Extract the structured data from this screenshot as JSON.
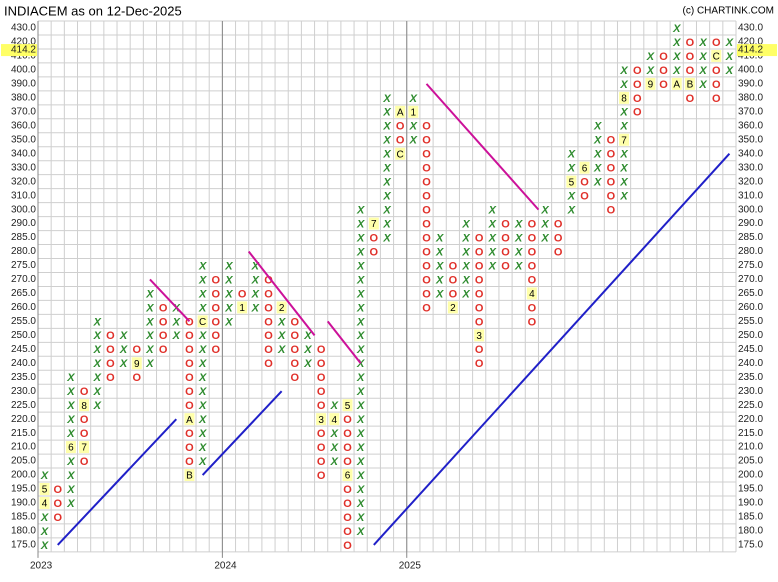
{
  "chart_data": {
    "type": "pnf",
    "title": "INDIACEM as on 12-Dec-2025",
    "source": "(c) CHARTINK.COM",
    "x_color": "#2e8b2e",
    "o_color": "#e0302a",
    "grid": true,
    "last_price": {
      "value": 414.2,
      "label": "414.2"
    },
    "yticks": [
      {
        "value": 430,
        "label": "430.0"
      },
      {
        "value": 420,
        "label": "420.0"
      },
      {
        "value": 410,
        "label": "410.0"
      },
      {
        "value": 400,
        "label": "400.0"
      },
      {
        "value": 390,
        "label": "390.0"
      },
      {
        "value": 380,
        "label": "380.0"
      },
      {
        "value": 370,
        "label": "370.0"
      },
      {
        "value": 360,
        "label": "360.0"
      },
      {
        "value": 350,
        "label": "350.0"
      },
      {
        "value": 340,
        "label": "340.0"
      },
      {
        "value": 330,
        "label": "330.0"
      },
      {
        "value": 320,
        "label": "320.0"
      },
      {
        "value": 310,
        "label": "310.0"
      },
      {
        "value": 300,
        "label": "300.0"
      },
      {
        "value": 290,
        "label": "290.0"
      },
      {
        "value": 285,
        "label": "285.0"
      },
      {
        "value": 280,
        "label": "280.0"
      },
      {
        "value": 275,
        "label": "275.0"
      },
      {
        "value": 270,
        "label": "270.0"
      },
      {
        "value": 265,
        "label": "265.0"
      },
      {
        "value": 260,
        "label": "260.0"
      },
      {
        "value": 255,
        "label": "255.0"
      },
      {
        "value": 250,
        "label": "250.0"
      },
      {
        "value": 245,
        "label": "245.0"
      },
      {
        "value": 240,
        "label": "240.0"
      },
      {
        "value": 235,
        "label": "235.0"
      },
      {
        "value": 230,
        "label": "230.0"
      },
      {
        "value": 225,
        "label": "225.0"
      },
      {
        "value": 220,
        "label": "220.0"
      },
      {
        "value": 215,
        "label": "215.0"
      },
      {
        "value": 210,
        "label": "210.0"
      },
      {
        "value": 205,
        "label": "205.0"
      },
      {
        "value": 200,
        "label": "200.0"
      },
      {
        "value": 195,
        "label": "195.0"
      },
      {
        "value": 190,
        "label": "190.0"
      },
      {
        "value": 185,
        "label": "185.0"
      },
      {
        "value": 180,
        "label": "180.0"
      },
      {
        "value": 175,
        "label": "175.0"
      }
    ],
    "xlabels": [
      {
        "col": 0,
        "label": "2023"
      },
      {
        "col": 14,
        "label": "2024"
      },
      {
        "col": 28,
        "label": "2025"
      }
    ],
    "columns": [
      {
        "type": "X",
        "low": 175,
        "high": 200,
        "markers": [
          {
            "value": 195,
            "label": "5"
          },
          {
            "value": 190,
            "label": "4"
          }
        ]
      },
      {
        "type": "O",
        "low": 185,
        "high": 195,
        "markers": []
      },
      {
        "type": "X",
        "low": 190,
        "high": 235,
        "markers": [
          {
            "value": 210,
            "label": "6"
          }
        ]
      },
      {
        "type": "O",
        "low": 205,
        "high": 230,
        "markers": [
          {
            "value": 210,
            "label": "7"
          },
          {
            "value": 225,
            "label": "8"
          }
        ]
      },
      {
        "type": "X",
        "low": 225,
        "high": 255,
        "markers": []
      },
      {
        "type": "O",
        "low": 235,
        "high": 250,
        "markers": []
      },
      {
        "type": "X",
        "low": 240,
        "high": 250,
        "markers": []
      },
      {
        "type": "O",
        "low": 235,
        "high": 245,
        "markers": [
          {
            "value": 240,
            "label": "9"
          }
        ]
      },
      {
        "type": "X",
        "low": 240,
        "high": 265,
        "markers": []
      },
      {
        "type": "O",
        "low": 245,
        "high": 260,
        "markers": []
      },
      {
        "type": "X",
        "low": 250,
        "high": 260,
        "markers": []
      },
      {
        "type": "O",
        "low": 200,
        "high": 255,
        "markers": [
          {
            "value": 220,
            "label": "A"
          },
          {
            "value": 200,
            "label": "B"
          }
        ]
      },
      {
        "type": "X",
        "low": 205,
        "high": 275,
        "markers": [
          {
            "value": 255,
            "label": "C"
          }
        ]
      },
      {
        "type": "O",
        "low": 245,
        "high": 270,
        "markers": []
      },
      {
        "type": "X",
        "low": 255,
        "high": 275,
        "markers": []
      },
      {
        "type": "O",
        "low": 260,
        "high": 265,
        "markers": [
          {
            "value": 260,
            "label": "1"
          }
        ]
      },
      {
        "type": "X",
        "low": 260,
        "high": 275,
        "markers": []
      },
      {
        "type": "O",
        "low": 240,
        "high": 270,
        "markers": []
      },
      {
        "type": "X",
        "low": 245,
        "high": 260,
        "markers": [
          {
            "value": 260,
            "label": "2"
          }
        ]
      },
      {
        "type": "O",
        "low": 235,
        "high": 255,
        "markers": []
      },
      {
        "type": "X",
        "low": 240,
        "high": 250,
        "markers": []
      },
      {
        "type": "O",
        "low": 200,
        "high": 245,
        "markers": [
          {
            "value": 220,
            "label": "3"
          }
        ]
      },
      {
        "type": "X",
        "low": 205,
        "high": 225,
        "markers": [
          {
            "value": 220,
            "label": "4"
          }
        ]
      },
      {
        "type": "O",
        "low": 175,
        "high": 225,
        "markers": [
          {
            "value": 225,
            "label": "5"
          },
          {
            "value": 200,
            "label": "6"
          }
        ]
      },
      {
        "type": "X",
        "low": 180,
        "high": 300,
        "markers": []
      },
      {
        "type": "O",
        "low": 280,
        "high": 290,
        "markers": [
          {
            "value": 290,
            "label": "7"
          }
        ]
      },
      {
        "type": "X",
        "low": 285,
        "high": 380,
        "markers": []
      },
      {
        "type": "O",
        "low": 340,
        "high": 370,
        "markers": [
          {
            "value": 370,
            "label": "A"
          },
          {
            "value": 340,
            "label": "C"
          }
        ]
      },
      {
        "type": "X",
        "low": 350,
        "high": 380,
        "markers": [
          {
            "value": 370,
            "label": "1"
          }
        ]
      },
      {
        "type": "O",
        "low": 260,
        "high": 360,
        "markers": []
      },
      {
        "type": "X",
        "low": 265,
        "high": 285,
        "markers": []
      },
      {
        "type": "O",
        "low": 260,
        "high": 275,
        "markers": [
          {
            "value": 260,
            "label": "2"
          }
        ]
      },
      {
        "type": "X",
        "low": 265,
        "high": 295,
        "markers": []
      },
      {
        "type": "O",
        "low": 240,
        "high": 285,
        "markers": [
          {
            "value": 250,
            "label": "3"
          }
        ]
      },
      {
        "type": "X",
        "low": 275,
        "high": 300,
        "markers": []
      },
      {
        "type": "O",
        "low": 275,
        "high": 290,
        "markers": []
      },
      {
        "type": "X",
        "low": 275,
        "high": 290,
        "markers": []
      },
      {
        "type": "O",
        "low": 255,
        "high": 290,
        "markers": [
          {
            "value": 265,
            "label": "4"
          }
        ]
      },
      {
        "type": "X",
        "low": 285,
        "high": 300,
        "markers": []
      },
      {
        "type": "O",
        "low": 280,
        "high": 290,
        "markers": []
      },
      {
        "type": "X",
        "low": 300,
        "high": 340,
        "markers": [
          {
            "value": 320,
            "label": "5"
          }
        ]
      },
      {
        "type": "O",
        "low": 310,
        "high": 330,
        "markers": [
          {
            "value": 330,
            "label": "6"
          }
        ]
      },
      {
        "type": "X",
        "low": 320,
        "high": 360,
        "markers": []
      },
      {
        "type": "O",
        "low": 300,
        "high": 350,
        "markers": []
      },
      {
        "type": "X",
        "low": 310,
        "high": 400,
        "markers": [
          {
            "value": 350,
            "label": "7"
          },
          {
            "value": 380,
            "label": "8"
          }
        ]
      },
      {
        "type": "O",
        "low": 370,
        "high": 400,
        "markers": []
      },
      {
        "type": "X",
        "low": 390,
        "high": 410,
        "markers": [
          {
            "value": 390,
            "label": "9"
          }
        ]
      },
      {
        "type": "O",
        "low": 390,
        "high": 410,
        "markers": []
      },
      {
        "type": "X",
        "low": 390,
        "high": 430,
        "markers": [
          {
            "value": 390,
            "label": "A"
          }
        ]
      },
      {
        "type": "O",
        "low": 380,
        "high": 420,
        "markers": [
          {
            "value": 390,
            "label": "B"
          }
        ]
      },
      {
        "type": "X",
        "low": 390,
        "high": 420,
        "markers": []
      },
      {
        "type": "O",
        "low": 380,
        "high": 420,
        "markers": [
          {
            "value": 410,
            "label": "C"
          }
        ]
      },
      {
        "type": "X",
        "low": 400,
        "high": 420,
        "markers": []
      }
    ],
    "trendlines": [
      {
        "color": "#2020c8",
        "x": [
          1,
          10
        ],
        "y": [
          175,
          220
        ]
      },
      {
        "color": "#2020c8",
        "x": [
          12,
          18
        ],
        "y": [
          200,
          230
        ]
      },
      {
        "color": "#2020c8",
        "x": [
          25,
          52
        ],
        "y": [
          175,
          340
        ]
      },
      {
        "color": "#cc1199",
        "x": [
          8,
          11
        ],
        "y": [
          270,
          255
        ]
      },
      {
        "color": "#cc1199",
        "x": [
          15.5,
          20.5
        ],
        "y": [
          280,
          250
        ]
      },
      {
        "color": "#cc1199",
        "x": [
          21.5,
          24
        ],
        "y": [
          255,
          240
        ]
      },
      {
        "color": "#cc1199",
        "x": [
          29,
          37.5
        ],
        "y": [
          390,
          300
        ]
      }
    ]
  }
}
